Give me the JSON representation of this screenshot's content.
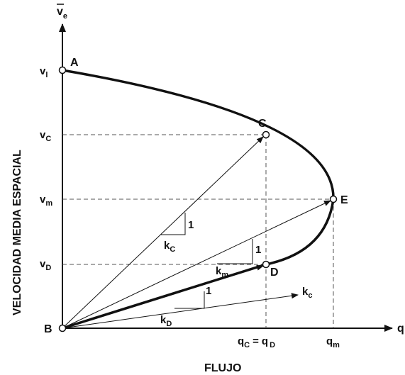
{
  "diagram": {
    "y_axis_symbol": "v",
    "y_axis_symbol_sub": "e",
    "x_axis_symbol": "q",
    "y_axis_title": "VELOCIDAD MEDIA ESPACIAL",
    "x_axis_title": "FLUJO",
    "y_ticks": [
      {
        "main": "v",
        "sub": "l"
      },
      {
        "main": "v",
        "sub": "C"
      },
      {
        "main": "v",
        "sub": "m"
      },
      {
        "main": "v",
        "sub": "D"
      }
    ],
    "x_ticks": {
      "qc_main": "q",
      "qc_sub": "C",
      "equals": "=",
      "qd_main": "q",
      "qd_sub": "D",
      "qm_main": "q",
      "qm_sub": "m"
    },
    "points": [
      "A",
      "B",
      "C",
      "D",
      "E"
    ],
    "slopes": [
      {
        "main": "k",
        "sub": "C",
        "one": "1"
      },
      {
        "main": "k",
        "sub": "m",
        "one": "1"
      },
      {
        "main": "k",
        "sub": "D",
        "one": "1"
      },
      {
        "main": "k",
        "sub": "c"
      }
    ],
    "colors": {
      "line": "#111111",
      "dashed": "#555555",
      "background": "#ffffff"
    }
  }
}
